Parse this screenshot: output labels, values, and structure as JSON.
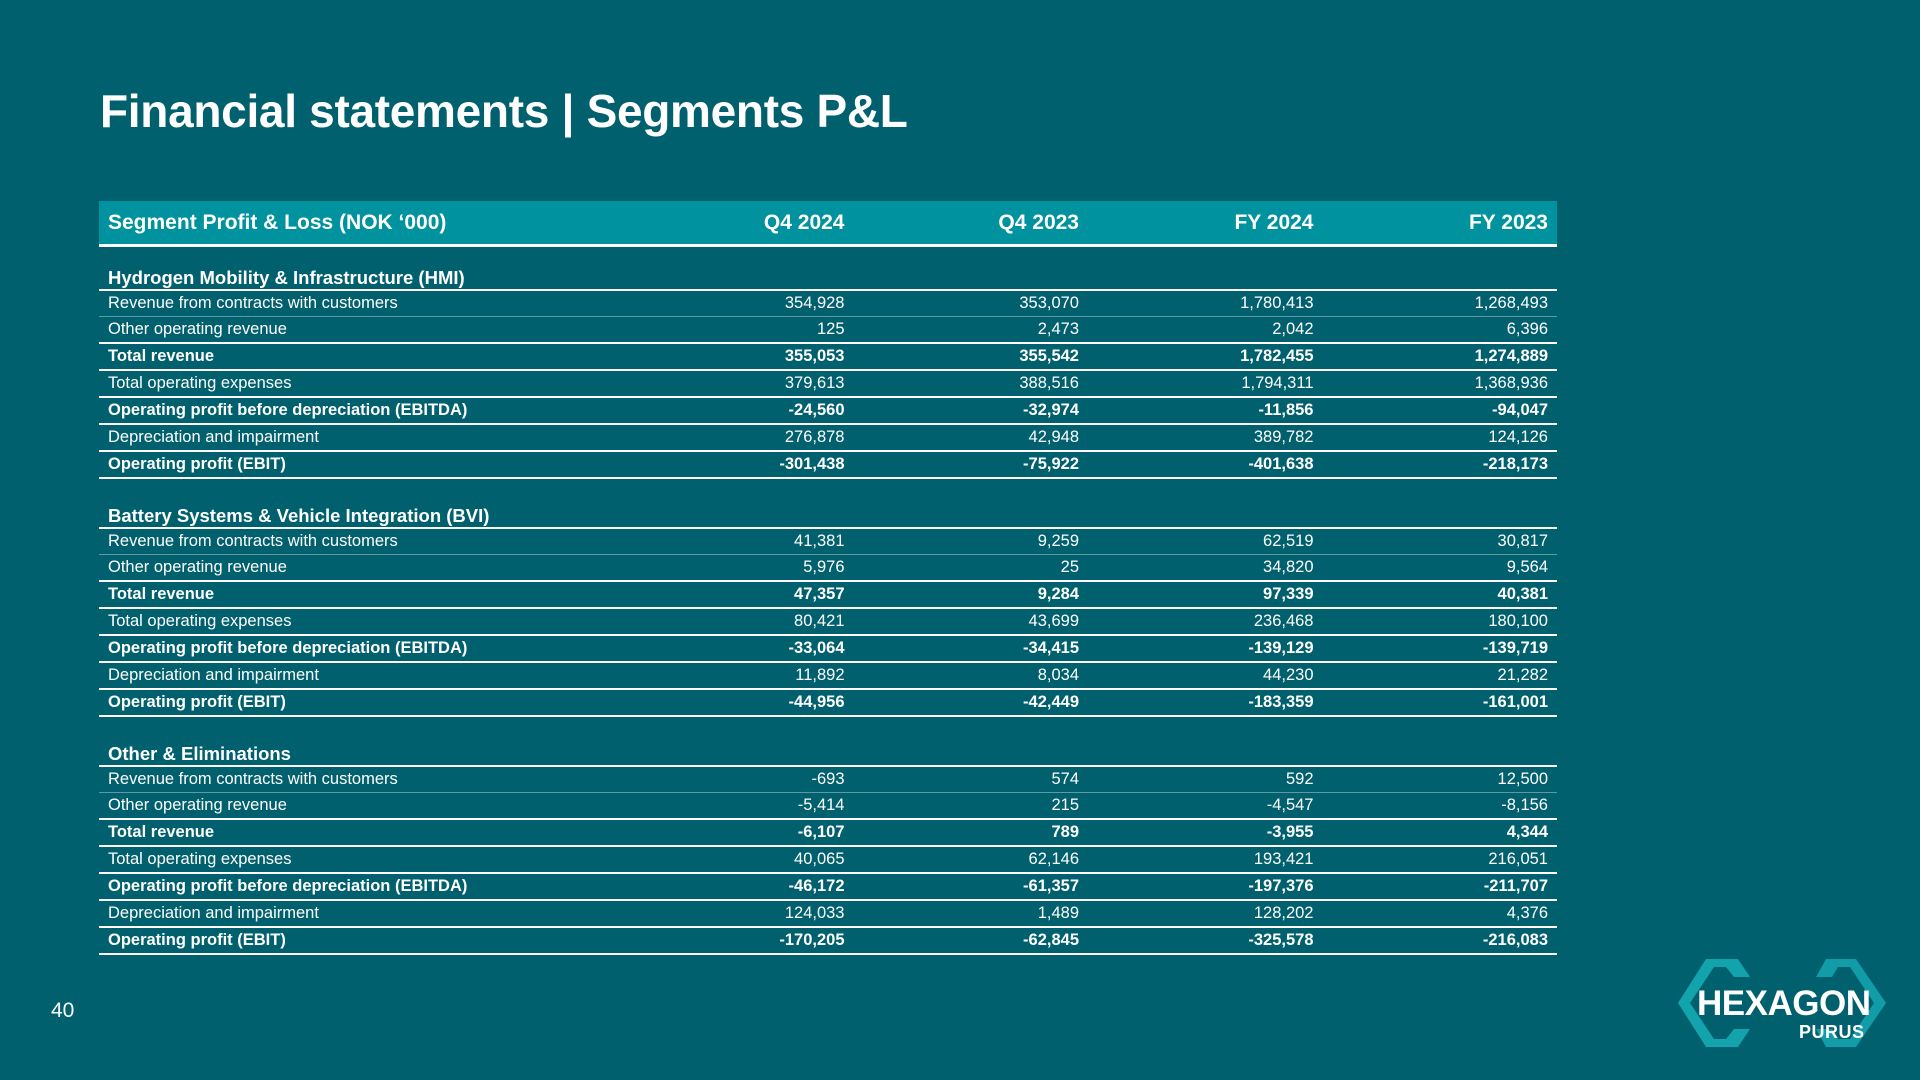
{
  "title": "Financial statements | Segments P&L",
  "page_number": "40",
  "logo": {
    "name": "HEXAGON",
    "sub": "PURUS",
    "icon": "hexagon-logo-icon",
    "color": "#13a3ad"
  },
  "table": {
    "headers": [
      "Segment Profit & Loss  (NOK ‘000)",
      "Q4 2024",
      "Q4 2023",
      "FY 2024",
      "FY 2023"
    ],
    "sections": [
      {
        "name": "Hydrogen Mobility & Infrastructure (HMI)",
        "rows": [
          {
            "label": "Revenue from contracts with customers",
            "values": [
              "354,928",
              "353,070",
              "1,780,413",
              "1,268,493"
            ],
            "bold": false
          },
          {
            "label": "Other operating revenue",
            "values": [
              "125",
              "2,473",
              "2,042",
              "6,396"
            ],
            "bold": false
          },
          {
            "label": "Total revenue",
            "values": [
              "355,053",
              "355,542",
              "1,782,455",
              "1,274,889"
            ],
            "bold": true
          },
          {
            "label": "Total operating expenses",
            "values": [
              "379,613",
              "388,516",
              "1,794,311",
              "1,368,936"
            ],
            "bold": false
          },
          {
            "label": "Operating profit before depreciation (EBITDA)",
            "values": [
              "-24,560",
              "-32,974",
              "-11,856",
              "-94,047"
            ],
            "bold": true
          },
          {
            "label": "Depreciation and impairment",
            "values": [
              "276,878",
              "42,948",
              "389,782",
              "124,126"
            ],
            "bold": false
          },
          {
            "label": "Operating profit (EBIT)",
            "values": [
              "-301,438",
              "-75,922",
              "-401,638",
              "-218,173"
            ],
            "bold": true
          }
        ]
      },
      {
        "name": "Battery Systems & Vehicle Integration (BVI)",
        "rows": [
          {
            "label": "Revenue from contracts with customers",
            "values": [
              "41,381",
              "9,259",
              "62,519",
              "30,817"
            ],
            "bold": false
          },
          {
            "label": "Other operating revenue",
            "values": [
              "5,976",
              "25",
              "34,820",
              "9,564"
            ],
            "bold": false
          },
          {
            "label": "Total revenue",
            "values": [
              "47,357",
              "9,284",
              "97,339",
              "40,381"
            ],
            "bold": true
          },
          {
            "label": "Total operating expenses",
            "values": [
              "80,421",
              "43,699",
              "236,468",
              "180,100"
            ],
            "bold": false
          },
          {
            "label": "Operating profit before depreciation (EBITDA)",
            "values": [
              "-33,064",
              "-34,415",
              "-139,129",
              "-139,719"
            ],
            "bold": true
          },
          {
            "label": "Depreciation and impairment",
            "values": [
              "11,892",
              "8,034",
              "44,230",
              "21,282"
            ],
            "bold": false
          },
          {
            "label": "Operating profit (EBIT)",
            "values": [
              "-44,956",
              "-42,449",
              "-183,359",
              "-161,001"
            ],
            "bold": true
          }
        ]
      },
      {
        "name": "Other & Eliminations",
        "rows": [
          {
            "label": "Revenue from contracts with customers",
            "values": [
              "-693",
              "574",
              "592",
              "12,500"
            ],
            "bold": false
          },
          {
            "label": "Other operating revenue",
            "values": [
              "-5,414",
              "215",
              "-4,547",
              "-8,156"
            ],
            "bold": false
          },
          {
            "label": "Total revenue",
            "values": [
              "-6,107",
              "789",
              "-3,955",
              "4,344"
            ],
            "bold": true
          },
          {
            "label": "Total operating expenses",
            "values": [
              "40,065",
              "62,146",
              "193,421",
              "216,051"
            ],
            "bold": false
          },
          {
            "label": "Operating profit before depreciation (EBITDA)",
            "values": [
              "-46,172",
              "-61,357",
              "-197,376",
              "-211,707"
            ],
            "bold": true
          },
          {
            "label": "Depreciation and impairment",
            "values": [
              "124,033",
              "1,489",
              "128,202",
              "4,376"
            ],
            "bold": false
          },
          {
            "label": "Operating profit (EBIT)",
            "values": [
              "-170,205",
              "-62,845",
              "-325,578",
              "-216,083"
            ],
            "bold": true
          }
        ]
      }
    ]
  }
}
